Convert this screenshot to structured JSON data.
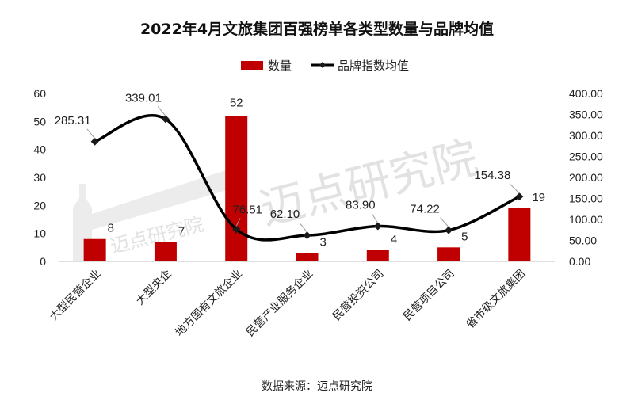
{
  "colors": {
    "bar": "#c00000",
    "line": "#000000",
    "marker": "#1a1a1a"
  },
  "watermark": "迈点研究院",
  "source_label": "数据来源：迈点研究院",
  "chart_data": {
    "type": "bar",
    "title": "2022年4月文旅集团百强榜单各类型数量与品牌均值",
    "categories": [
      "大型民营企业",
      "大型央企",
      "地方国有文旅企业",
      "民营产业服务企业",
      "民营投资公司",
      "民营项目公司",
      "省市级文旅集团"
    ],
    "series": [
      {
        "name": "数量",
        "type": "bar",
        "axis": "left",
        "values": [
          8,
          7,
          52,
          3,
          4,
          5,
          19
        ],
        "labels": [
          "8",
          "7",
          "52",
          "3",
          "4",
          "5",
          "19"
        ]
      },
      {
        "name": "品牌指数均值",
        "type": "line",
        "axis": "right",
        "values": [
          285.31,
          339.01,
          76.51,
          62.1,
          83.9,
          74.22,
          154.38
        ],
        "labels": [
          "285.31",
          "339.01",
          "76.51",
          "62.10",
          "83.90",
          "74.22",
          "154.38"
        ]
      }
    ],
    "y_left": {
      "range": [
        0,
        60
      ],
      "ticks": [
        "0",
        "10",
        "20",
        "30",
        "40",
        "50",
        "60"
      ]
    },
    "y_right": {
      "range": [
        0,
        400
      ],
      "ticks": [
        "0.00",
        "50.00",
        "100.00",
        "150.00",
        "200.00",
        "250.00",
        "300.00",
        "350.00",
        "400.00"
      ]
    },
    "legend": {
      "position": "top",
      "items": [
        "数量",
        "品牌指数均值"
      ]
    },
    "grid": false
  }
}
